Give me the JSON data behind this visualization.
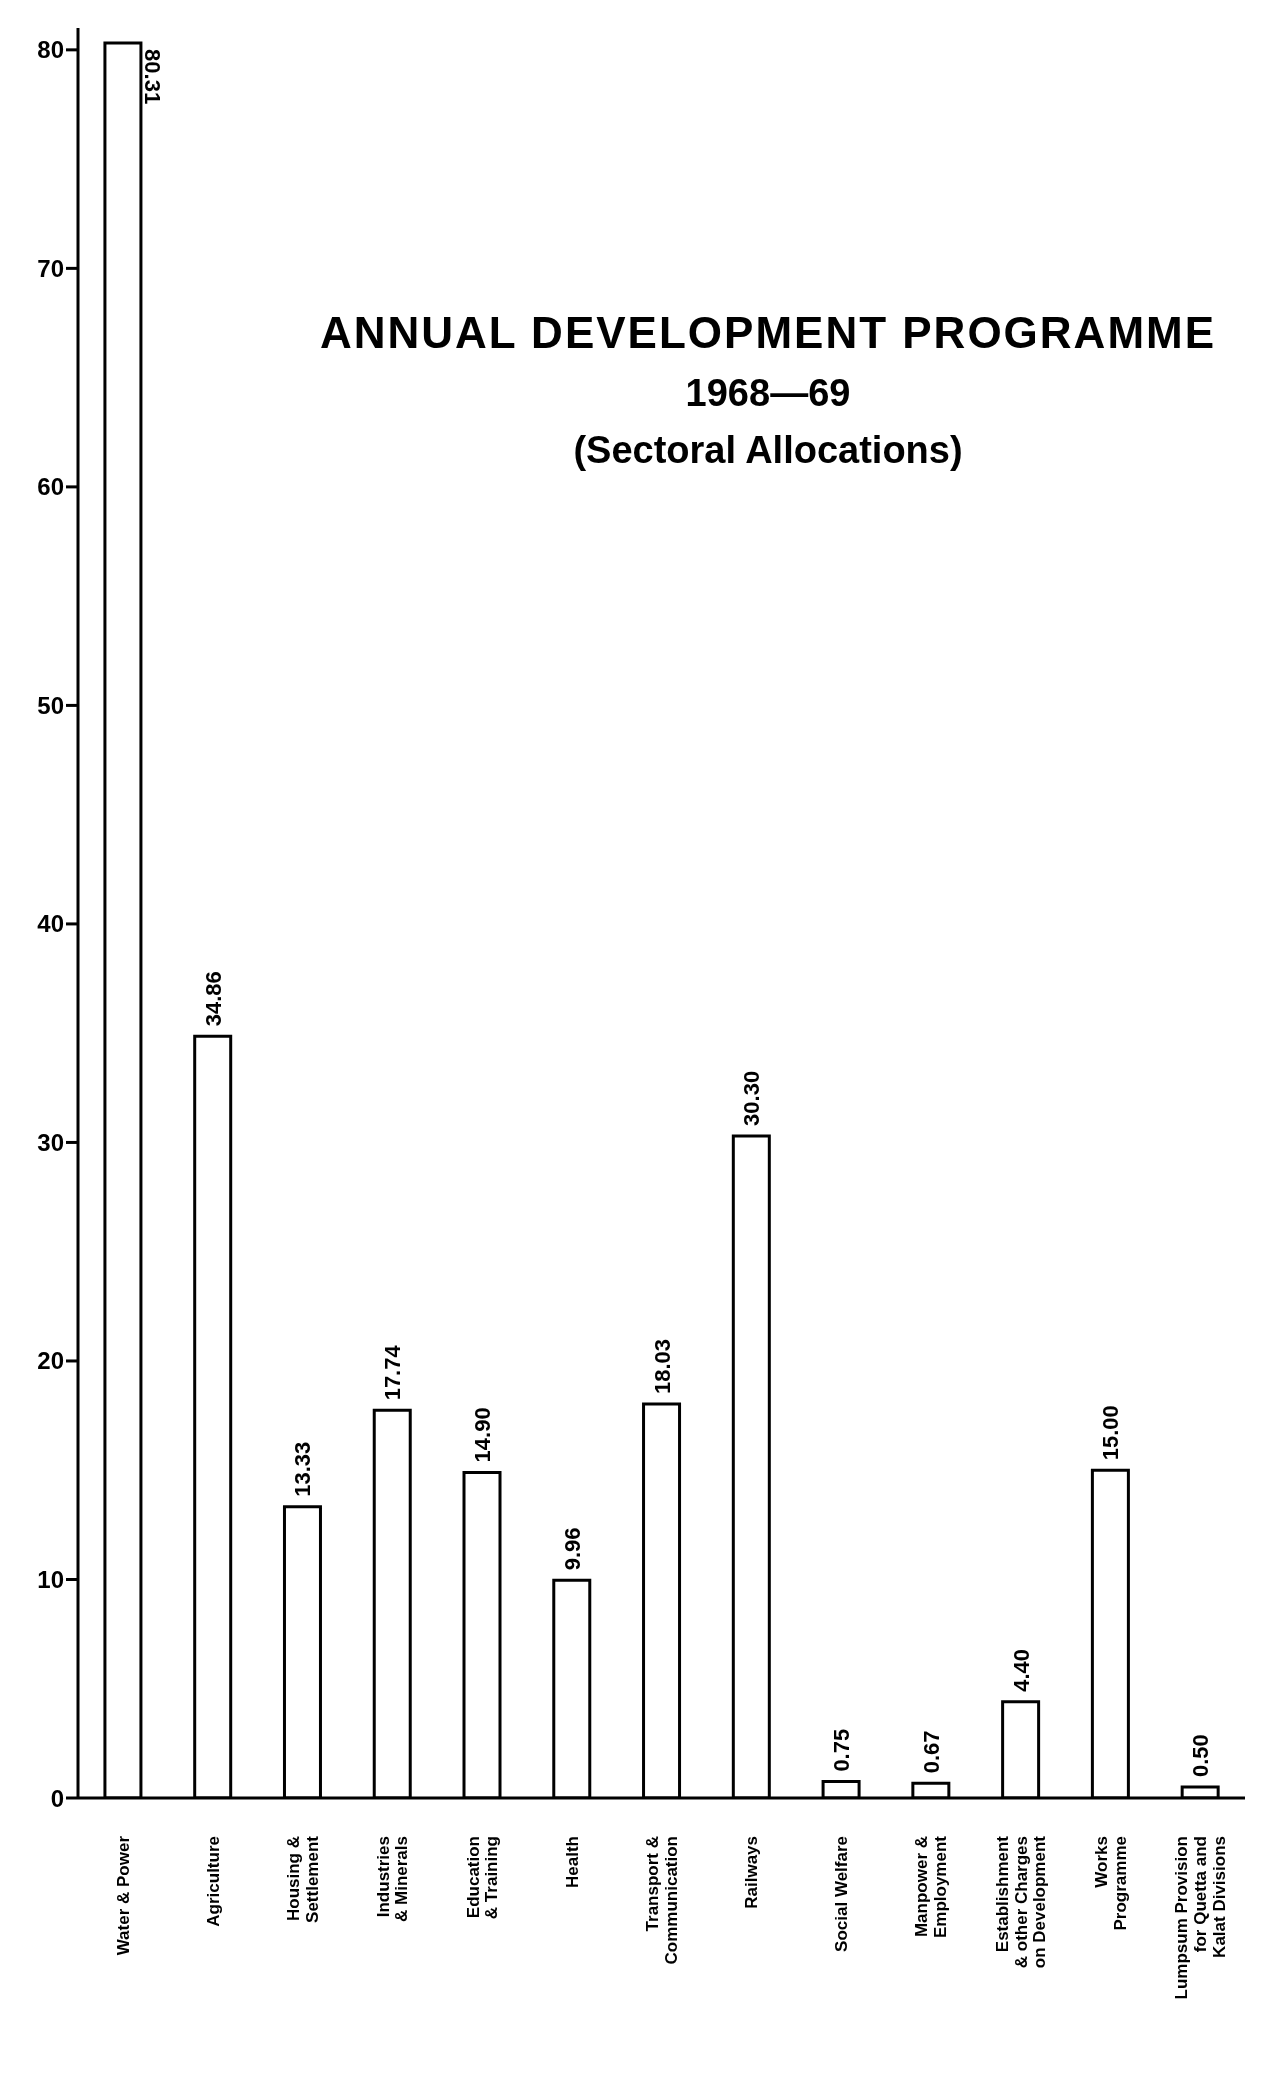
{
  "chart_data": {
    "type": "bar",
    "title": "ANNUAL DEVELOPMENT PROGRAMME\n1968—69",
    "subtitle": "(Sectoral Allocations)",
    "categories": [
      "Water & Power",
      "Agriculture",
      "Housing &\nSettlement",
      "Industries\n& Minerals",
      "Education\n& Training",
      "Health",
      "Transport &\nCommunication",
      "Railways",
      "Social Welfare",
      "Manpower &\nEmployment",
      "Establishment\n& other Charges\non Development",
      "Works\nProgramme",
      "Lumpsum Provision\nfor Quetta and\nKalat Divisions"
    ],
    "values": [
      80.31,
      34.86,
      13.33,
      17.74,
      14.9,
      9.96,
      18.03,
      30.3,
      0.75,
      0.67,
      4.4,
      15.0,
      0.5
    ],
    "color": "#ffffff",
    "ylim": [
      0,
      81
    ],
    "yticks": [
      0,
      10,
      20,
      30,
      40,
      50,
      60,
      70,
      80
    ],
    "value_labels": [
      "80.31",
      "34.86",
      "13.33",
      "17.74",
      "14.90",
      "9.96",
      "18.03",
      "30.30",
      "0.75",
      "0.67",
      "4.40",
      "15.00",
      "0.50"
    ],
    "grid": false,
    "legend": false
  }
}
